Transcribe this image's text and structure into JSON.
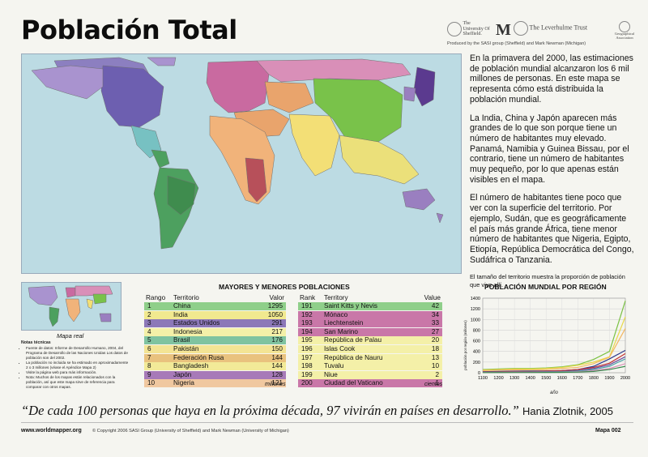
{
  "title": "Población Total",
  "logos": {
    "sheffield": "The University Of Sheffield.",
    "leverhulme": "The Leverhulme Trust",
    "geographical": "Geographical Association",
    "produced_by": "Produced by the SASI group (Sheffield) and Mark Newman (Michigan)"
  },
  "intro": {
    "p1": "En la primavera del 2000, las estimaciones de población mundial alcanzaron los 6 mil millones de personas. En este mapa se representa cómo está distribuida la población mundial.",
    "p2": "La India, China y Japón aparecen más grandes de lo que son porque tiene un número de habitantes muy elevado. Panamá, Namibia y Guinea Bissau, por el contrario, tiene un número de habitantes muy pequeño, por lo que apenas están visibles en el mapa.",
    "p3": "El número de habitantes tiene poco que ver con la superficie del territorio. Por ejemplo, Sudán, que es geográficamente el país más grande África, tiene menor número de habitantes que Nigeria, Egipto, Etiopía, República Democrática del Congo, Sudáfrica o Tanzania.",
    "p4": "El tamaño del territorio muestra la proporción de población que vive allí."
  },
  "mini_map_caption": "Mapa real",
  "notes": {
    "title": "Notas técnicas",
    "items": [
      "Fuente de datos: Informe de Desarrollo Humano, 2004, del Programa de Desarrollo de las Naciones Unidas Los datos de población son del 2002.",
      "La población no incluida se ha estimado en aproximadamente 2 o 3 millones (véase el Apéndice Mapa 2)",
      "Visite la página web para más información.",
      "Nota: Muchos de los mapas están relacionados con la población, así que este mapa sirve de referencia para comparar con otros mapas."
    ]
  },
  "rankings": {
    "title": "MAYORES Y MENORES POBLACIONES",
    "headers": {
      "rank_a": "Rango",
      "territory_a": "Territorio",
      "value_a": "Valor",
      "rank_b": "Rank",
      "territory_b": "Territory",
      "value_b": "Value"
    },
    "unit_a": "millones",
    "unit_b": "cientos",
    "largest": [
      {
        "rank": "1",
        "territory": "China",
        "value": "1295",
        "color": "#8fcf8a"
      },
      {
        "rank": "2",
        "territory": "India",
        "value": "1050",
        "color": "#f1e98f"
      },
      {
        "rank": "3",
        "territory": "Estados Unidos",
        "value": "291",
        "color": "#8c78b8"
      },
      {
        "rank": "4",
        "territory": "Indonesia",
        "value": "217",
        "color": "#f4f0a8"
      },
      {
        "rank": "5",
        "territory": "Brasil",
        "value": "176",
        "color": "#7fc3a0"
      },
      {
        "rank": "6",
        "territory": "Pakistán",
        "value": "150",
        "color": "#f3e494"
      },
      {
        "rank": "7",
        "territory": "Federación Rusa",
        "value": "144",
        "color": "#e9c27e"
      },
      {
        "rank": "8",
        "territory": "Bangladesh",
        "value": "144",
        "color": "#f2ea98"
      },
      {
        "rank": "9",
        "territory": "Japón",
        "value": "128",
        "color": "#a77ab8"
      },
      {
        "rank": "10",
        "territory": "Nigeria",
        "value": "121",
        "color": "#f0c8a0"
      }
    ],
    "smallest": [
      {
        "rank": "191",
        "territory": "Saint Kitts y Nevis",
        "value": "42",
        "color": "#8fcf8a"
      },
      {
        "rank": "192",
        "territory": "Mónaco",
        "value": "34",
        "color": "#c977a8"
      },
      {
        "rank": "193",
        "territory": "Liechtenstein",
        "value": "33",
        "color": "#c977a8"
      },
      {
        "rank": "194",
        "territory": "San Marino",
        "value": "27",
        "color": "#c977a8"
      },
      {
        "rank": "195",
        "territory": "República de Palau",
        "value": "20",
        "color": "#f4f0a8"
      },
      {
        "rank": "196",
        "territory": "Islas Cook",
        "value": "18",
        "color": "#f4f0a8"
      },
      {
        "rank": "197",
        "territory": "República de Nauru",
        "value": "13",
        "color": "#f4f0a8"
      },
      {
        "rank": "198",
        "territory": "Tuvalu",
        "value": "10",
        "color": "#f4f0a8"
      },
      {
        "rank": "199",
        "territory": "Niue",
        "value": "2",
        "color": "#f4f0a8"
      },
      {
        "rank": "200",
        "territory": "Ciudad del Vaticano",
        "value": "1",
        "color": "#c977a8"
      }
    ]
  },
  "chart_data": {
    "type": "line",
    "title": "POBLACIÓN MUNDIAL POR REGIÓN",
    "xlabel": "año",
    "ylabel": "población por región (millones)",
    "x": [
      1100,
      1200,
      1300,
      1400,
      1500,
      1600,
      1700,
      1800,
      1900,
      2000
    ],
    "xlim": [
      1100,
      2000
    ],
    "ylim": [
      0,
      1400
    ],
    "x_ticks": [
      "1100",
      "1200",
      "1300",
      "1400",
      "1500",
      "1600",
      "1700",
      "1800",
      "1900",
      "2000"
    ],
    "y_ticks": [
      "0",
      "200",
      "400",
      "600",
      "800",
      "1000",
      "1200",
      "1400"
    ],
    "grid": true,
    "series": [
      {
        "color": "#7ac143",
        "values": [
          60,
          70,
          80,
          80,
          90,
          110,
          150,
          250,
          400,
          1350
        ]
      },
      {
        "color": "#e8d84a",
        "values": [
          50,
          60,
          70,
          70,
          80,
          100,
          140,
          200,
          300,
          1050
        ]
      },
      {
        "color": "#f2b661",
        "values": [
          40,
          50,
          55,
          50,
          60,
          80,
          100,
          170,
          290,
          830
        ]
      },
      {
        "color": "#2e3a8c",
        "values": [
          20,
          25,
          30,
          30,
          35,
          40,
          60,
          120,
          260,
          420
        ]
      },
      {
        "color": "#c3302f",
        "values": [
          15,
          20,
          25,
          20,
          30,
          40,
          60,
          100,
          180,
          360
        ]
      },
      {
        "color": "#6b4a9b",
        "values": [
          10,
          12,
          15,
          15,
          20,
          25,
          40,
          80,
          150,
          300
        ]
      },
      {
        "color": "#4aa3a8",
        "values": [
          8,
          10,
          12,
          12,
          15,
          20,
          30,
          60,
          120,
          260
        ]
      },
      {
        "color": "#d98fb8",
        "values": [
          5,
          6,
          8,
          8,
          10,
          12,
          20,
          40,
          80,
          170
        ]
      },
      {
        "color": "#3b8a4e",
        "values": [
          3,
          4,
          5,
          5,
          6,
          8,
          12,
          25,
          60,
          120
        ]
      }
    ]
  },
  "map": {
    "colors": {
      "north_america": "#a993cf",
      "usa": "#6d5fb0",
      "canada": "#8c7fc0",
      "mexico": "#77c1c2",
      "south_america": "#4da05f",
      "brazil": "#3f8c4e",
      "europe": "#c96aa0",
      "russia": "#d98fb8",
      "africa": "#f1b37a",
      "africa_south": "#b7505a",
      "middle_east": "#e9a46c",
      "india": "#f3df76",
      "china": "#79c24a",
      "japan": "#5b3a8f",
      "se_asia": "#ebe07a",
      "australia": "#9a7fc0",
      "ocean": "#bcdbe3"
    }
  },
  "quote": {
    "text": "“De cada 100 personas que haya en la próxima década, 97 vivirán en países en desarrollo.”",
    "author": "Hania Zlotnik, 2005"
  },
  "footer": {
    "site": "www.worldmapper.org",
    "copyright": "© Copyright 2006 SASI Group (University of Sheffield) and Mark Newman (University of Michigan)",
    "map_number": "Mapa 002"
  }
}
